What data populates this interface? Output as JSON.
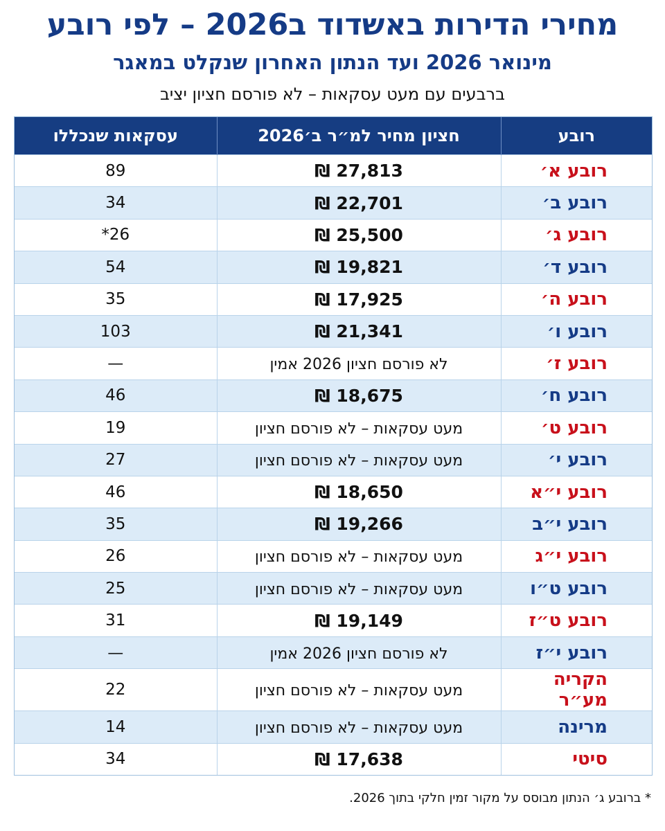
{
  "title": "מחירי הדירות באשדוד ב2026 – לפי רובע",
  "subtitle": "מינואר 2026 ועד הנתון האחרון שנקלט במאגר",
  "note_line": "ברבעים עם מעט עסקאות – לא פורסם חציון יציב",
  "table": {
    "headers": {
      "area": "רובע",
      "price": "חציון מחיר למ״ר ב׳2026",
      "deals": "עסקאות שנכללו"
    },
    "rows": [
      {
        "area": "רובע א׳",
        "price": "27,813 ₪",
        "deals": "89",
        "color": "red",
        "price_is_number": true
      },
      {
        "area": "רובע ב׳",
        "price": "22,701 ₪",
        "deals": "34",
        "color": "blue",
        "price_is_number": true
      },
      {
        "area": "רובע ג׳",
        "price": "25,500 ₪",
        "deals": "26*",
        "color": "red",
        "price_is_number": true
      },
      {
        "area": "רובע ד׳",
        "price": "19,821 ₪",
        "deals": "54",
        "color": "blue",
        "price_is_number": true
      },
      {
        "area": "רובע ה׳",
        "price": "17,925 ₪",
        "deals": "35",
        "color": "red",
        "price_is_number": true
      },
      {
        "area": "רובע ו׳",
        "price": "21,341 ₪",
        "deals": "103",
        "color": "blue",
        "price_is_number": true
      },
      {
        "area": "רובע ז׳",
        "price": "לא פורסם חציון 2026 אמין",
        "deals": "—",
        "color": "red",
        "price_is_number": false
      },
      {
        "area": "רובע ח׳",
        "price": "18,675 ₪",
        "deals": "46",
        "color": "blue",
        "price_is_number": true
      },
      {
        "area": "רובע ט׳",
        "price": "מעט עסקאות – לא פורסם חציון",
        "deals": "19",
        "color": "red",
        "price_is_number": false
      },
      {
        "area": "רובע י׳",
        "price": "מעט עסקאות – לא פורסם חציון",
        "deals": "27",
        "color": "blue",
        "price_is_number": false
      },
      {
        "area": "רובע י״א",
        "price": "18,650 ₪",
        "deals": "46",
        "color": "red",
        "price_is_number": true
      },
      {
        "area": "רובע י״ב",
        "price": "19,266 ₪",
        "deals": "35",
        "color": "blue",
        "price_is_number": true
      },
      {
        "area": "רובע י״ג",
        "price": "מעט עסקאות – לא פורסם חציון",
        "deals": "26",
        "color": "red",
        "price_is_number": false
      },
      {
        "area": "רובע ט״ו",
        "price": "מעט עסקאות – לא פורסם חציון",
        "deals": "25",
        "color": "blue",
        "price_is_number": false
      },
      {
        "area": "רובע ט״ז",
        "price": "19,149 ₪",
        "deals": "31",
        "color": "red",
        "price_is_number": true
      },
      {
        "area": "רובע י״ז",
        "price": "לא פורסם חציון 2026 אמין",
        "deals": "—",
        "color": "blue",
        "price_is_number": false
      },
      {
        "area": "הקריה מע״ר",
        "price": "מעט עסקאות – לא פורסם חציון",
        "deals": "22",
        "color": "red",
        "price_is_number": false
      },
      {
        "area": "מרינה",
        "price": "מעט עסקאות – לא פורסם חציון",
        "deals": "14",
        "color": "blue",
        "price_is_number": false
      },
      {
        "area": "סיטי",
        "price": "17,638 ₪",
        "deals": "34",
        "color": "red",
        "price_is_number": true
      }
    ]
  },
  "footnote": "* ברובע ג׳ הנתון מבוסס על מקור זמין חלקי בתוך 2026.",
  "colors": {
    "brand_blue": "#153b86",
    "header_bg": "#163d82",
    "accent_red": "#c8101b",
    "row_stripe": "#dcebf8"
  }
}
